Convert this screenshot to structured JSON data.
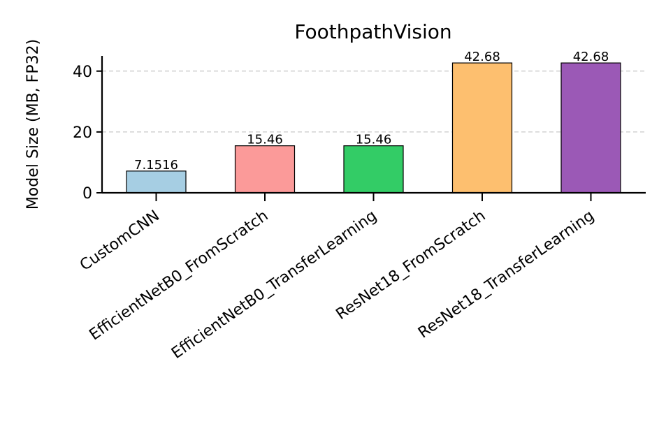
{
  "chart_data": {
    "type": "bar",
    "title": "FoothpathVision",
    "xlabel": "",
    "ylabel": "Model Size (MB, FP32)",
    "categories": [
      "CustomCNN",
      "EfficientNetB0_FromScratch",
      "EfficientNetB0_TransferLearning",
      "ResNet18_FromScratch",
      "ResNet18_TransferLearning"
    ],
    "values": [
      7.1516,
      15.46,
      15.46,
      42.68,
      42.68
    ],
    "value_labels": [
      "7.1516",
      "15.46",
      "15.46",
      "42.68",
      "42.68"
    ],
    "colors": [
      "#a6cee3",
      "#fb9a99",
      "#33cc66",
      "#fdbf6f",
      "#9b59b6"
    ],
    "ylim": [
      0,
      45
    ],
    "yticks": [
      0,
      20,
      40
    ],
    "grid": "y-dashed",
    "legend": "none"
  }
}
